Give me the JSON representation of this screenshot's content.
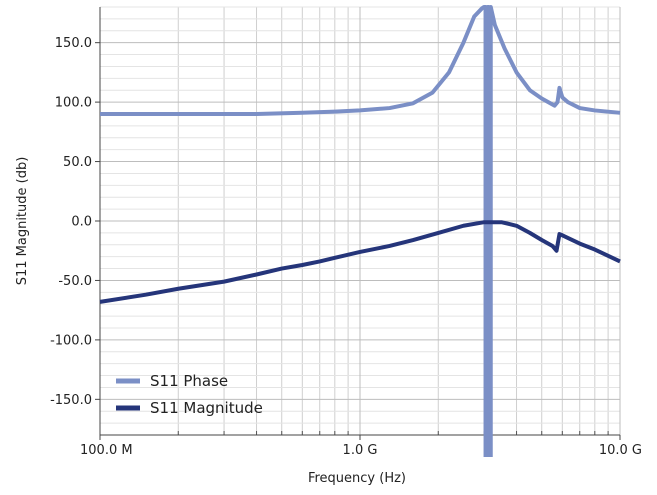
{
  "chart_data": {
    "type": "line",
    "title": "",
    "xlabel": "Frequency (Hz)",
    "ylabel": "S11 Magnitude (db)",
    "x_scale": "log",
    "xlim": [
      100000000,
      10000000000
    ],
    "ylim": [
      -180,
      180
    ],
    "x_ticks": [
      {
        "value": 100000000,
        "label": "100.0 M"
      },
      {
        "value": 1000000000,
        "label": "1.0 G"
      },
      {
        "value": 10000000000,
        "label": "10.0 G"
      }
    ],
    "y_ticks": [
      {
        "value": 150,
        "label": "150.0"
      },
      {
        "value": 100,
        "label": "100.0"
      },
      {
        "value": 50,
        "label": "50.0"
      },
      {
        "value": 0,
        "label": "0.0"
      },
      {
        "value": -50,
        "label": "-50.0"
      },
      {
        "value": -100,
        "label": "-100.0"
      },
      {
        "value": -150,
        "label": "-150.0"
      }
    ],
    "grid": true,
    "legend_position": "bottom-left",
    "series": [
      {
        "name": "S11 Phase",
        "color": "#7b8fc6",
        "x": [
          100000000,
          200000000,
          400000000,
          600000000,
          800000000,
          1000000000,
          1300000000,
          1600000000,
          1900000000,
          2200000000,
          2500000000,
          2750000000,
          2950000000,
          3000000000,
          3040000000,
          3100000000,
          3300000000,
          3600000000,
          4000000000,
          4500000000,
          5000000000,
          5600000000,
          5750000000,
          5850000000,
          6000000000,
          6300000000,
          7000000000,
          8000000000,
          10000000000
        ],
        "values": [
          90,
          90,
          90,
          91,
          92,
          93,
          95,
          99,
          108,
          125,
          150,
          172,
          179,
          180,
          -180,
          178,
          165,
          145,
          125,
          110,
          103,
          97,
          100,
          112,
          104,
          100,
          95,
          93,
          91
        ]
      },
      {
        "name": "S11 Magnitude",
        "color": "#25357a",
        "x": [
          100000000,
          150000000,
          200000000,
          300000000,
          400000000,
          500000000,
          600000000,
          700000000,
          800000000,
          1000000000,
          1300000000,
          1600000000,
          2000000000,
          2500000000,
          3000000000,
          3500000000,
          4000000000,
          4500000000,
          5000000000,
          5500000000,
          5700000000,
          5850000000,
          6000000000,
          7000000000,
          8000000000,
          10000000000
        ],
        "values": [
          -68,
          -62,
          -57,
          -51,
          -45,
          -40,
          -37,
          -34,
          -31,
          -26,
          -21,
          -16,
          -10,
          -4,
          -1,
          -1,
          -4,
          -10,
          -16,
          -21,
          -25,
          -11,
          -12,
          -19,
          -24,
          -34
        ]
      }
    ]
  }
}
